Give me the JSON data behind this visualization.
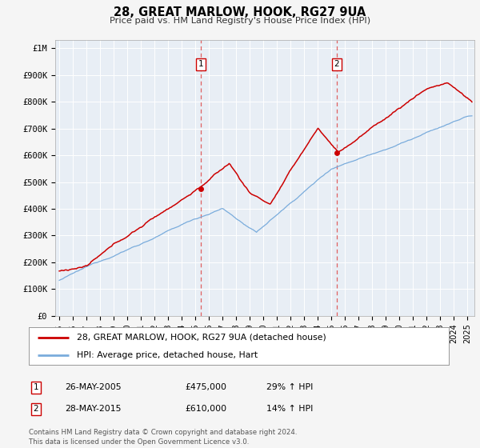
{
  "title": "28, GREAT MARLOW, HOOK, RG27 9UA",
  "subtitle": "Price paid vs. HM Land Registry's House Price Index (HPI)",
  "ylabel_ticks": [
    "£0",
    "£100K",
    "£200K",
    "£300K",
    "£400K",
    "£500K",
    "£600K",
    "£700K",
    "£800K",
    "£900K",
    "£1M"
  ],
  "ytick_values": [
    0,
    100000,
    200000,
    300000,
    400000,
    500000,
    600000,
    700000,
    800000,
    900000,
    1000000
  ],
  "ylim": [
    0,
    1030000
  ],
  "xlim_start": 1994.7,
  "xlim_end": 2025.5,
  "vline1_x": 2005.4,
  "vline2_x": 2015.4,
  "marker1_x": 2005.4,
  "marker1_y": 475000,
  "marker2_x": 2015.4,
  "marker2_y": 610000,
  "vline_color": "#e06060",
  "red_color": "#cc0000",
  "blue_color": "#7aacdc",
  "legend_label1": "28, GREAT MARLOW, HOOK, RG27 9UA (detached house)",
  "legend_label2": "HPI: Average price, detached house, Hart",
  "table_row1": [
    "1",
    "26-MAY-2005",
    "£475,000",
    "29% ↑ HPI"
  ],
  "table_row2": [
    "2",
    "28-MAY-2015",
    "£610,000",
    "14% ↑ HPI"
  ],
  "footnote": "Contains HM Land Registry data © Crown copyright and database right 2024.\nThis data is licensed under the Open Government Licence v3.0.",
  "fig_bg": "#f5f5f5",
  "plot_bg": "#e8eef5"
}
